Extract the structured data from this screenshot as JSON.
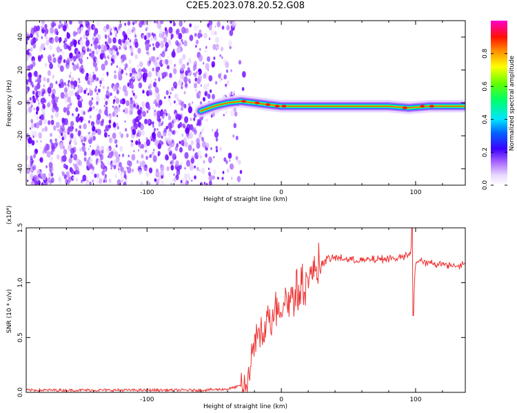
{
  "title": "C2E5.2023.078.20.52.G08",
  "chart_data": [
    {
      "type": "heatmap",
      "xlabel": "Height of straight line (km)",
      "ylabel": "Frequency (Hz)",
      "xlim": [
        -190,
        137
      ],
      "ylim": [
        -50,
        50
      ],
      "x_ticks": [
        -100,
        0,
        100
      ],
      "y_ticks": [
        -40,
        -20,
        0,
        20,
        40
      ],
      "colorbar": {
        "label": "Normalized spectral amplitude",
        "range": [
          0,
          1
        ],
        "ticks": [
          0.0,
          0.2,
          0.4,
          0.6,
          0.8
        ],
        "tick_labels": [
          "0.0",
          "0.2",
          "0.4",
          "0.6",
          "0.8"
        ],
        "colormap": [
          "#ffffff",
          "#c89cff",
          "#7a00ff",
          "#0000ff",
          "#00ffff",
          "#00ff00",
          "#ffff00",
          "#ff7f00",
          "#ff0000",
          "#ff00ff"
        ]
      },
      "noise_region_x": [
        -190,
        -45
      ],
      "signal_line": [
        {
          "x": -60,
          "y": -5
        },
        {
          "x": -50,
          "y": -2
        },
        {
          "x": -40,
          "y": 0
        },
        {
          "x": -30,
          "y": 1
        },
        {
          "x": -20,
          "y": 0
        },
        {
          "x": -10,
          "y": -1
        },
        {
          "x": 0,
          "y": -2
        },
        {
          "x": 20,
          "y": -2
        },
        {
          "x": 60,
          "y": -2
        },
        {
          "x": 80,
          "y": -2
        },
        {
          "x": 95,
          "y": -3
        },
        {
          "x": 110,
          "y": -2
        },
        {
          "x": 137,
          "y": -2
        }
      ],
      "grid": false
    },
    {
      "type": "line",
      "xlabel": "Height of straight line (km)",
      "ylabel": "SNR (10 * v/v)",
      "y_multiplier_label": "(x10⁴)",
      "xlim": [
        -190,
        137
      ],
      "ylim": [
        0,
        1.5
      ],
      "x_ticks": [
        -100,
        0,
        100
      ],
      "y_ticks": [
        0.0,
        0.5,
        1.0,
        1.5
      ],
      "y_tick_labels": [
        "0.0",
        "0.5",
        "1.0",
        "1.5"
      ],
      "color": "#ee3333",
      "series": [
        {
          "x": [
            -190,
            -150,
            -100,
            -60,
            -40,
            -30,
            -25,
            -22,
            -20,
            -18,
            -16,
            -14,
            -10,
            -5,
            0,
            5,
            10,
            15,
            20,
            25,
            30,
            35,
            40,
            50,
            60,
            70,
            80,
            90,
            95,
            97,
            98,
            100,
            110,
            120,
            130,
            137
          ],
          "y": [
            0.02,
            0.02,
            0.02,
            0.02,
            0.03,
            0.06,
            0.1,
            0.3,
            0.5,
            0.4,
            0.6,
            0.5,
            0.7,
            0.75,
            0.8,
            0.85,
            0.9,
            0.95,
            1.05,
            1.12,
            1.18,
            1.22,
            1.23,
            1.21,
            1.2,
            1.21,
            1.22,
            1.23,
            1.25,
            1.3,
            0.7,
            1.2,
            1.18,
            1.17,
            1.16,
            1.16
          ]
        }
      ],
      "grid": false
    }
  ]
}
